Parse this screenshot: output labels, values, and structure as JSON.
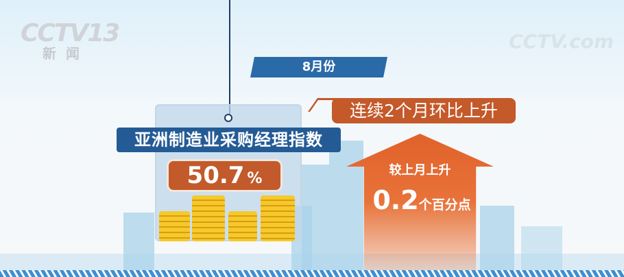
{
  "watermarks": {
    "channel_logo": "CCTV13",
    "channel_sub": "新闻",
    "site_logo": "CCTV.com 央视网"
  },
  "date_tag": "8月份",
  "indicator": {
    "title": "亚洲制造业采购经理指数",
    "value": "50.7",
    "unit": "%"
  },
  "callout": "连续2个月环比上升",
  "change": {
    "label": "较上月上升",
    "value": "0.2",
    "unit": "个百分点"
  },
  "colors": {
    "blue": "#245b95",
    "orange": "#c4592a",
    "arrow": "#e0622a"
  }
}
